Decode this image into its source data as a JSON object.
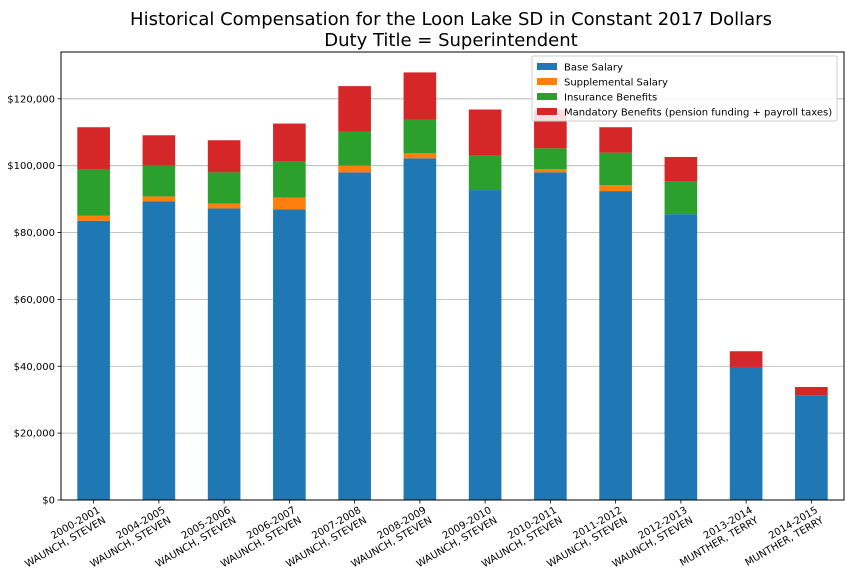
{
  "chart_data": {
    "type": "bar",
    "stacked": true,
    "title": "Historical Compensation for the Loon Lake SD in Constant 2017 Dollars",
    "subtitle": "Duty Title = Superintendent",
    "xlabel": "",
    "ylabel": "",
    "ylim": [
      0,
      134000
    ],
    "y_ticks": [
      0,
      20000,
      40000,
      60000,
      80000,
      100000,
      120000
    ],
    "y_tick_labels": [
      "$0",
      "$20,000",
      "$40,000",
      "$60,000",
      "$80,000",
      "$100,000",
      "$120,000"
    ],
    "grid": "horizontal",
    "legend_position": "top-right",
    "categories": [
      [
        "2000-2001",
        "WAUNCH, STEVEN"
      ],
      [
        "2004-2005",
        "WAUNCH, STEVEN"
      ],
      [
        "2005-2006",
        "WAUNCH, STEVEN"
      ],
      [
        "2006-2007",
        "WAUNCH, STEVEN"
      ],
      [
        "2007-2008",
        "WAUNCH, STEVEN"
      ],
      [
        "2008-2009",
        "WAUNCH, STEVEN"
      ],
      [
        "2009-2010",
        "WAUNCH, STEVEN"
      ],
      [
        "2010-2011",
        "WAUNCH, STEVEN"
      ],
      [
        "2011-2012",
        "WAUNCH, STEVEN"
      ],
      [
        "2012-2013",
        "WAUNCH, STEVEN"
      ],
      [
        "2013-2014",
        "MUNTHER, TERRY"
      ],
      [
        "2014-2015",
        "MUNTHER, TERRY"
      ]
    ],
    "series": [
      {
        "name": "Base Salary",
        "color": "#1f77b4",
        "values": [
          83500,
          89300,
          87200,
          86900,
          98000,
          102200,
          92700,
          98000,
          92400,
          85500,
          39800,
          31300
        ]
      },
      {
        "name": "Supplemental Salary",
        "color": "#ff7f0e",
        "values": [
          1500,
          1500,
          1500,
          3500,
          2000,
          1500,
          0,
          1000,
          1800,
          0,
          0,
          0
        ]
      },
      {
        "name": "Insurance Benefits",
        "color": "#2ca02c",
        "values": [
          14000,
          9200,
          9300,
          10800,
          10200,
          10100,
          10300,
          6200,
          9700,
          9700,
          0,
          0
        ]
      },
      {
        "name": "Mandatory Benefits (pension funding + payroll taxes)",
        "color": "#d62728",
        "values": [
          12500,
          9100,
          9600,
          11400,
          13600,
          14100,
          13800,
          11500,
          7600,
          7400,
          4700,
          2500
        ]
      }
    ]
  }
}
